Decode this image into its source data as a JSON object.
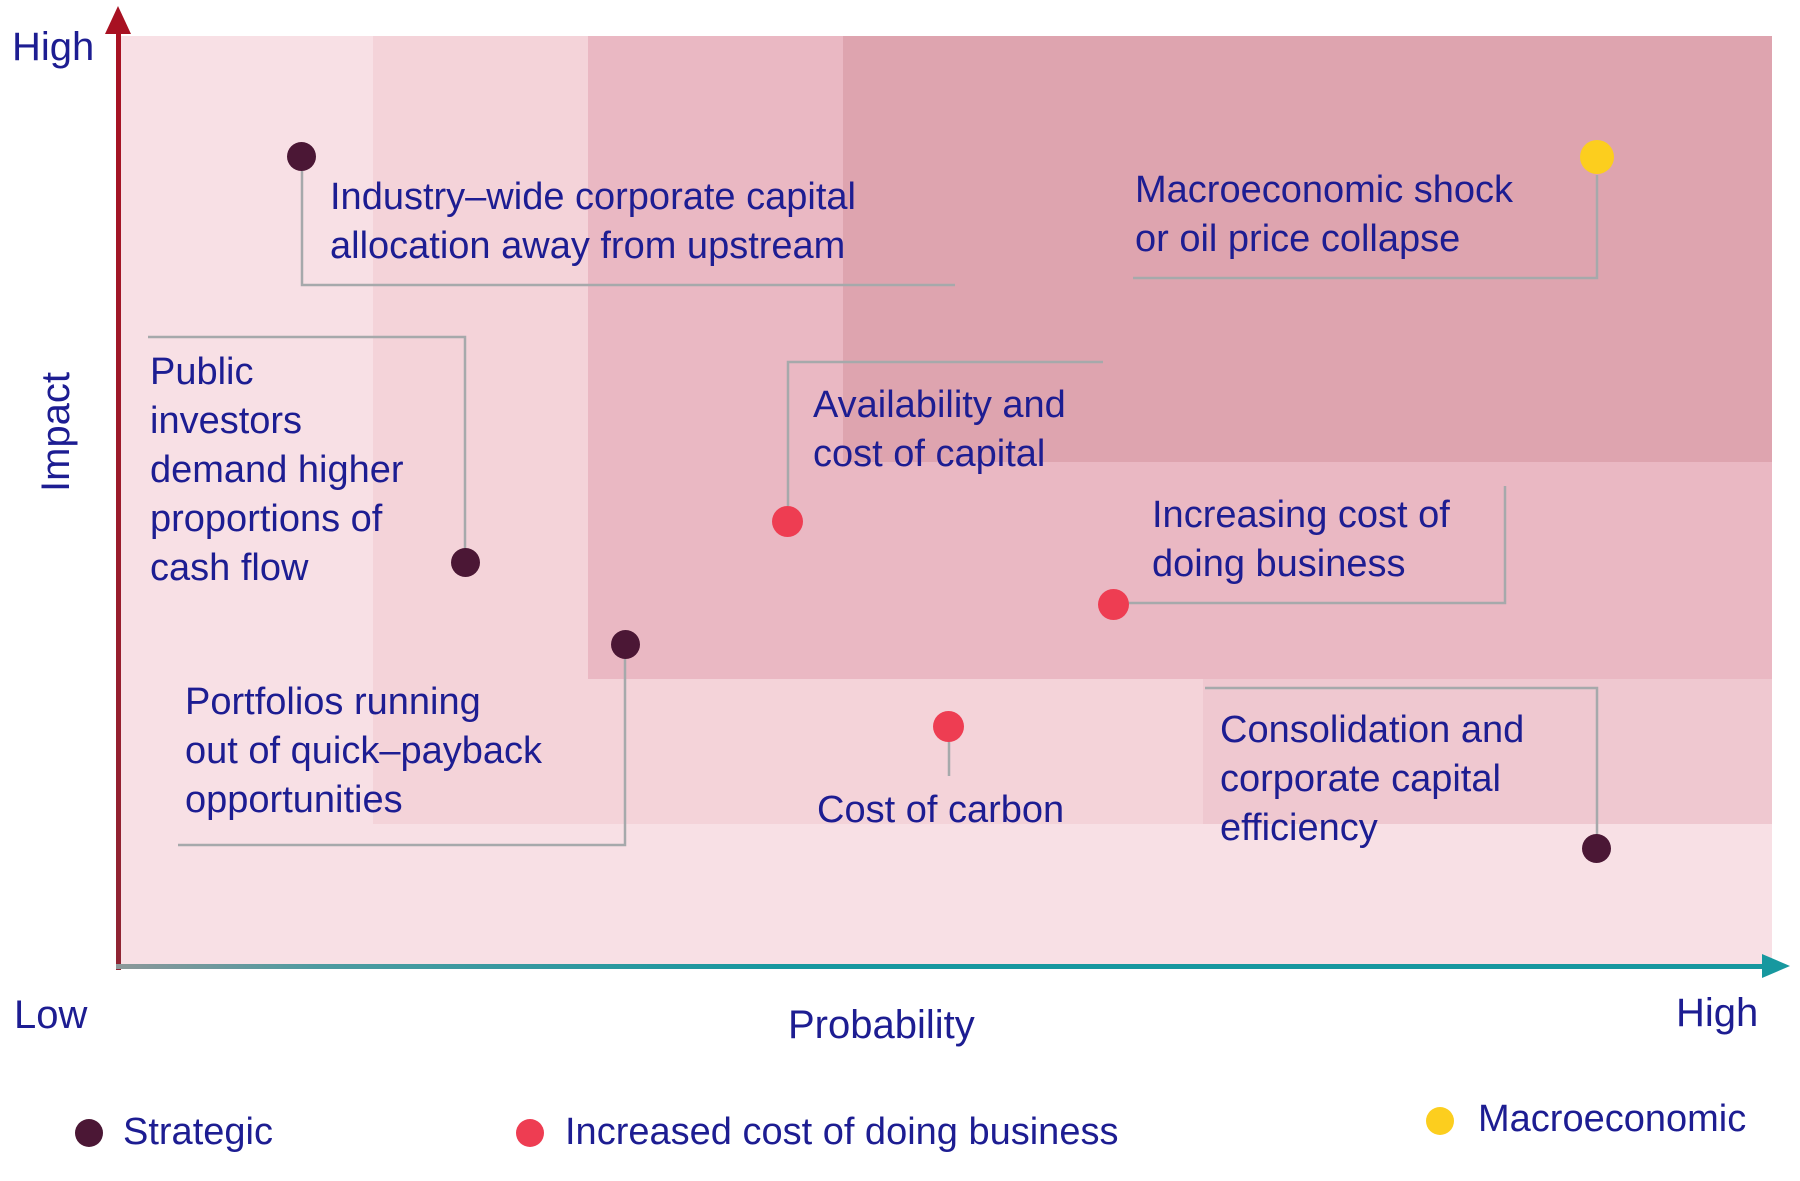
{
  "axes": {
    "y_max_label": "High",
    "y_label": "Impact",
    "origin_label": "Low",
    "x_label": "Probability",
    "x_max_label": "High"
  },
  "legend": [
    {
      "label": "Strategic"
    },
    {
      "label": "Increased cost of doing business"
    },
    {
      "label": "Macroeconomic"
    }
  ],
  "colors": {
    "text": "#1d1d92",
    "connector": "#a6a9ab",
    "y_axis": "#a81122",
    "x_axis": "#17989f",
    "bands": {
      "base": "#f8e0e5",
      "band_a": "#f4d3d9",
      "band_b": "#eab8c3",
      "band_c": "#dea4af",
      "band_d": "#efc8d0"
    },
    "categories": {
      "Strategic": "#4b1735",
      "Increased cost of doing business": "#ee3d52",
      "Macroeconomic": "#fcce1e"
    }
  },
  "chart_data": {
    "type": "scatter",
    "title": "",
    "xlabel": "Probability",
    "ylabel": "Impact",
    "x_range_labels": [
      "Low",
      "High"
    ],
    "y_range_labels": [
      "Low",
      "High"
    ],
    "axis_scale": "qualitative 0-100 (estimated from position)",
    "grid": false,
    "legend_position": "bottom",
    "points": [
      {
        "id": "industry-capital-allocation",
        "label": "Industry–wide corporate capital\nallocation away from upstream",
        "category": "Strategic",
        "probability": 11.1,
        "impact": 87.1
      },
      {
        "id": "macroeconomic-shock",
        "label": "Macroeconomic shock\nor oil price collapse",
        "category": "Macroeconomic",
        "probability": 89.4,
        "impact": 87.0
      },
      {
        "id": "public-investors-cash-flow",
        "label": "Public\ninvestors\ndemand higher\nproportions of\ncash flow",
        "category": "Strategic",
        "probability": 21.0,
        "impact": 43.5
      },
      {
        "id": "availability-cost-of-capital",
        "label": "Availability and\ncost of capital",
        "category": "Increased cost of doing business",
        "probability": 40.5,
        "impact": 47.9
      },
      {
        "id": "portfolios-quick-payback",
        "label": "Portfolios running\nout of quick–payback\nopportunities",
        "category": "Strategic",
        "probability": 30.7,
        "impact": 34.7
      },
      {
        "id": "increasing-cost-of-business",
        "label": "Increasing cost of\ndoing business",
        "category": "Increased cost of doing business",
        "probability": 60.2,
        "impact": 39.0
      },
      {
        "id": "cost-of-carbon",
        "label": "Cost of carbon",
        "category": "Increased cost of doing business",
        "probability": 50.2,
        "impact": 25.9
      },
      {
        "id": "consolidation-capital-efficiency",
        "label": "Consolidation and\ncorporate capital\nefficiency",
        "category": "Strategic",
        "probability": 89.4,
        "impact": 12.8
      }
    ]
  }
}
